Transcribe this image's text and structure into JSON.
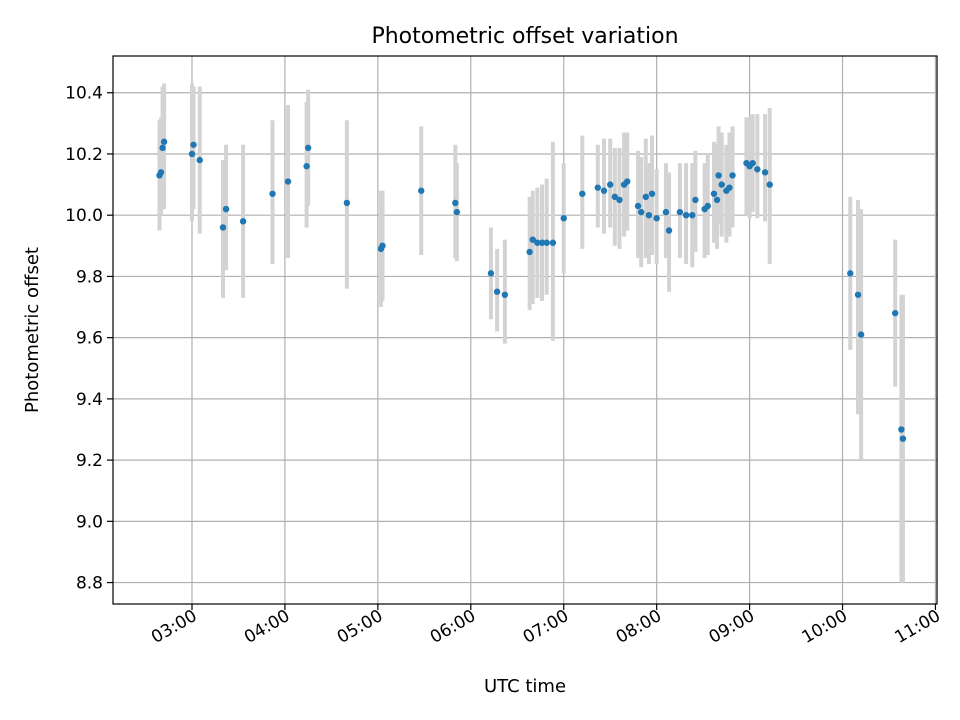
{
  "chart_data": {
    "type": "scatter",
    "title": "Photometric offset variation",
    "xlabel": "UTC time",
    "ylabel": "Photometric offset",
    "xlim": [
      "02:09",
      "11:01"
    ],
    "ylim": [
      8.73,
      10.52
    ],
    "grid": true,
    "x_ticks": [
      "03:00",
      "04:00",
      "05:00",
      "06:00",
      "07:00",
      "08:00",
      "09:00",
      "10:00",
      "11:00"
    ],
    "y_ticks": [
      8.8,
      9.0,
      9.2,
      9.4,
      9.6,
      9.8,
      10.0,
      10.2,
      10.4
    ],
    "colors": {
      "points": "#1f77b4",
      "errorbars": "#d3d3d3"
    },
    "series": [
      {
        "points": [
          [
            "02:39",
            10.13,
            9.95,
            10.31
          ],
          [
            "02:40",
            10.14,
            10.0,
            10.32
          ],
          [
            "02:41",
            10.22,
            10.05,
            10.42
          ],
          [
            "02:42",
            10.24,
            10.02,
            10.43
          ],
          [
            "03:00",
            10.2,
            9.98,
            10.43
          ],
          [
            "03:01",
            10.23,
            10.02,
            10.42
          ],
          [
            "03:05",
            10.18,
            9.94,
            10.42
          ],
          [
            "03:20",
            9.96,
            9.73,
            10.18
          ],
          [
            "03:22",
            10.02,
            9.82,
            10.23
          ],
          [
            "03:33",
            9.98,
            9.73,
            10.23
          ],
          [
            "03:52",
            10.07,
            9.84,
            10.31
          ],
          [
            "04:02",
            10.11,
            9.86,
            10.36
          ],
          [
            "04:14",
            10.16,
            9.96,
            10.37
          ],
          [
            "04:15",
            10.22,
            10.03,
            10.41
          ],
          [
            "04:40",
            10.04,
            9.76,
            10.31
          ],
          [
            "05:02",
            9.89,
            9.7,
            10.08
          ],
          [
            "05:03",
            9.9,
            9.72,
            10.08
          ],
          [
            "05:28",
            10.08,
            9.87,
            10.29
          ],
          [
            "05:50",
            10.04,
            9.86,
            10.23
          ],
          [
            "05:51",
            10.01,
            9.85,
            10.17
          ],
          [
            "06:13",
            9.81,
            9.66,
            9.96
          ],
          [
            "06:17",
            9.75,
            9.62,
            9.89
          ],
          [
            "06:22",
            9.74,
            9.58,
            9.92
          ],
          [
            "06:38",
            9.88,
            9.69,
            10.06
          ],
          [
            "06:40",
            9.92,
            9.71,
            10.08
          ],
          [
            "06:43",
            9.91,
            9.73,
            10.09
          ],
          [
            "06:46",
            9.91,
            9.72,
            10.1
          ],
          [
            "06:49",
            9.91,
            9.74,
            10.12
          ],
          [
            "06:53",
            9.91,
            9.59,
            10.24
          ],
          [
            "07:00",
            9.99,
            9.81,
            10.17
          ],
          [
            "07:12",
            10.07,
            9.89,
            10.26
          ],
          [
            "07:22",
            10.09,
            9.96,
            10.23
          ],
          [
            "07:26",
            10.08,
            9.94,
            10.25
          ],
          [
            "07:30",
            10.1,
            9.96,
            10.25
          ],
          [
            "07:33",
            10.06,
            9.9,
            10.22
          ],
          [
            "07:36",
            10.05,
            9.89,
            10.22
          ],
          [
            "07:39",
            10.1,
            9.93,
            10.27
          ],
          [
            "07:41",
            10.11,
            9.95,
            10.27
          ],
          [
            "07:48",
            10.03,
            9.86,
            10.21
          ],
          [
            "07:50",
            10.01,
            9.83,
            10.19
          ],
          [
            "07:53",
            10.06,
            9.86,
            10.25
          ],
          [
            "07:55",
            10.0,
            9.84,
            10.17
          ],
          [
            "07:57",
            10.07,
            9.87,
            10.26
          ],
          [
            "08:00",
            9.99,
            9.84,
            10.15
          ],
          [
            "08:06",
            10.01,
            9.86,
            10.17
          ],
          [
            "08:08",
            9.95,
            9.75,
            10.14
          ],
          [
            "08:15",
            10.01,
            9.86,
            10.17
          ],
          [
            "08:19",
            10.0,
            9.84,
            10.17
          ],
          [
            "08:23",
            10.0,
            9.83,
            10.17
          ],
          [
            "08:25",
            10.05,
            9.88,
            10.21
          ],
          [
            "08:31",
            10.02,
            9.86,
            10.17
          ],
          [
            "08:33",
            10.03,
            9.87,
            10.2
          ],
          [
            "08:37",
            10.07,
            9.91,
            10.24
          ],
          [
            "08:39",
            10.05,
            9.89,
            10.23
          ],
          [
            "08:40",
            10.13,
            9.97,
            10.29
          ],
          [
            "08:42",
            10.1,
            9.93,
            10.27
          ],
          [
            "08:45",
            10.08,
            9.91,
            10.23
          ],
          [
            "08:47",
            10.09,
            9.93,
            10.27
          ],
          [
            "08:49",
            10.13,
            9.96,
            10.29
          ],
          [
            "08:58",
            10.17,
            10.0,
            10.32
          ],
          [
            "09:00",
            10.16,
            9.99,
            10.32
          ],
          [
            "09:02",
            10.17,
            10.01,
            10.33
          ],
          [
            "09:05",
            10.15,
            9.99,
            10.33
          ],
          [
            "09:10",
            10.14,
            9.98,
            10.33
          ],
          [
            "09:13",
            10.1,
            9.84,
            10.35
          ],
          [
            "10:05",
            9.81,
            9.56,
            10.06
          ],
          [
            "10:10",
            9.74,
            9.35,
            10.05
          ],
          [
            "10:12",
            9.61,
            9.2,
            10.02
          ],
          [
            "10:34",
            9.68,
            9.44,
            9.92
          ],
          [
            "10:38",
            9.3,
            8.8,
            9.74
          ],
          [
            "10:39",
            9.27,
            8.8,
            9.74
          ]
        ]
      }
    ]
  }
}
